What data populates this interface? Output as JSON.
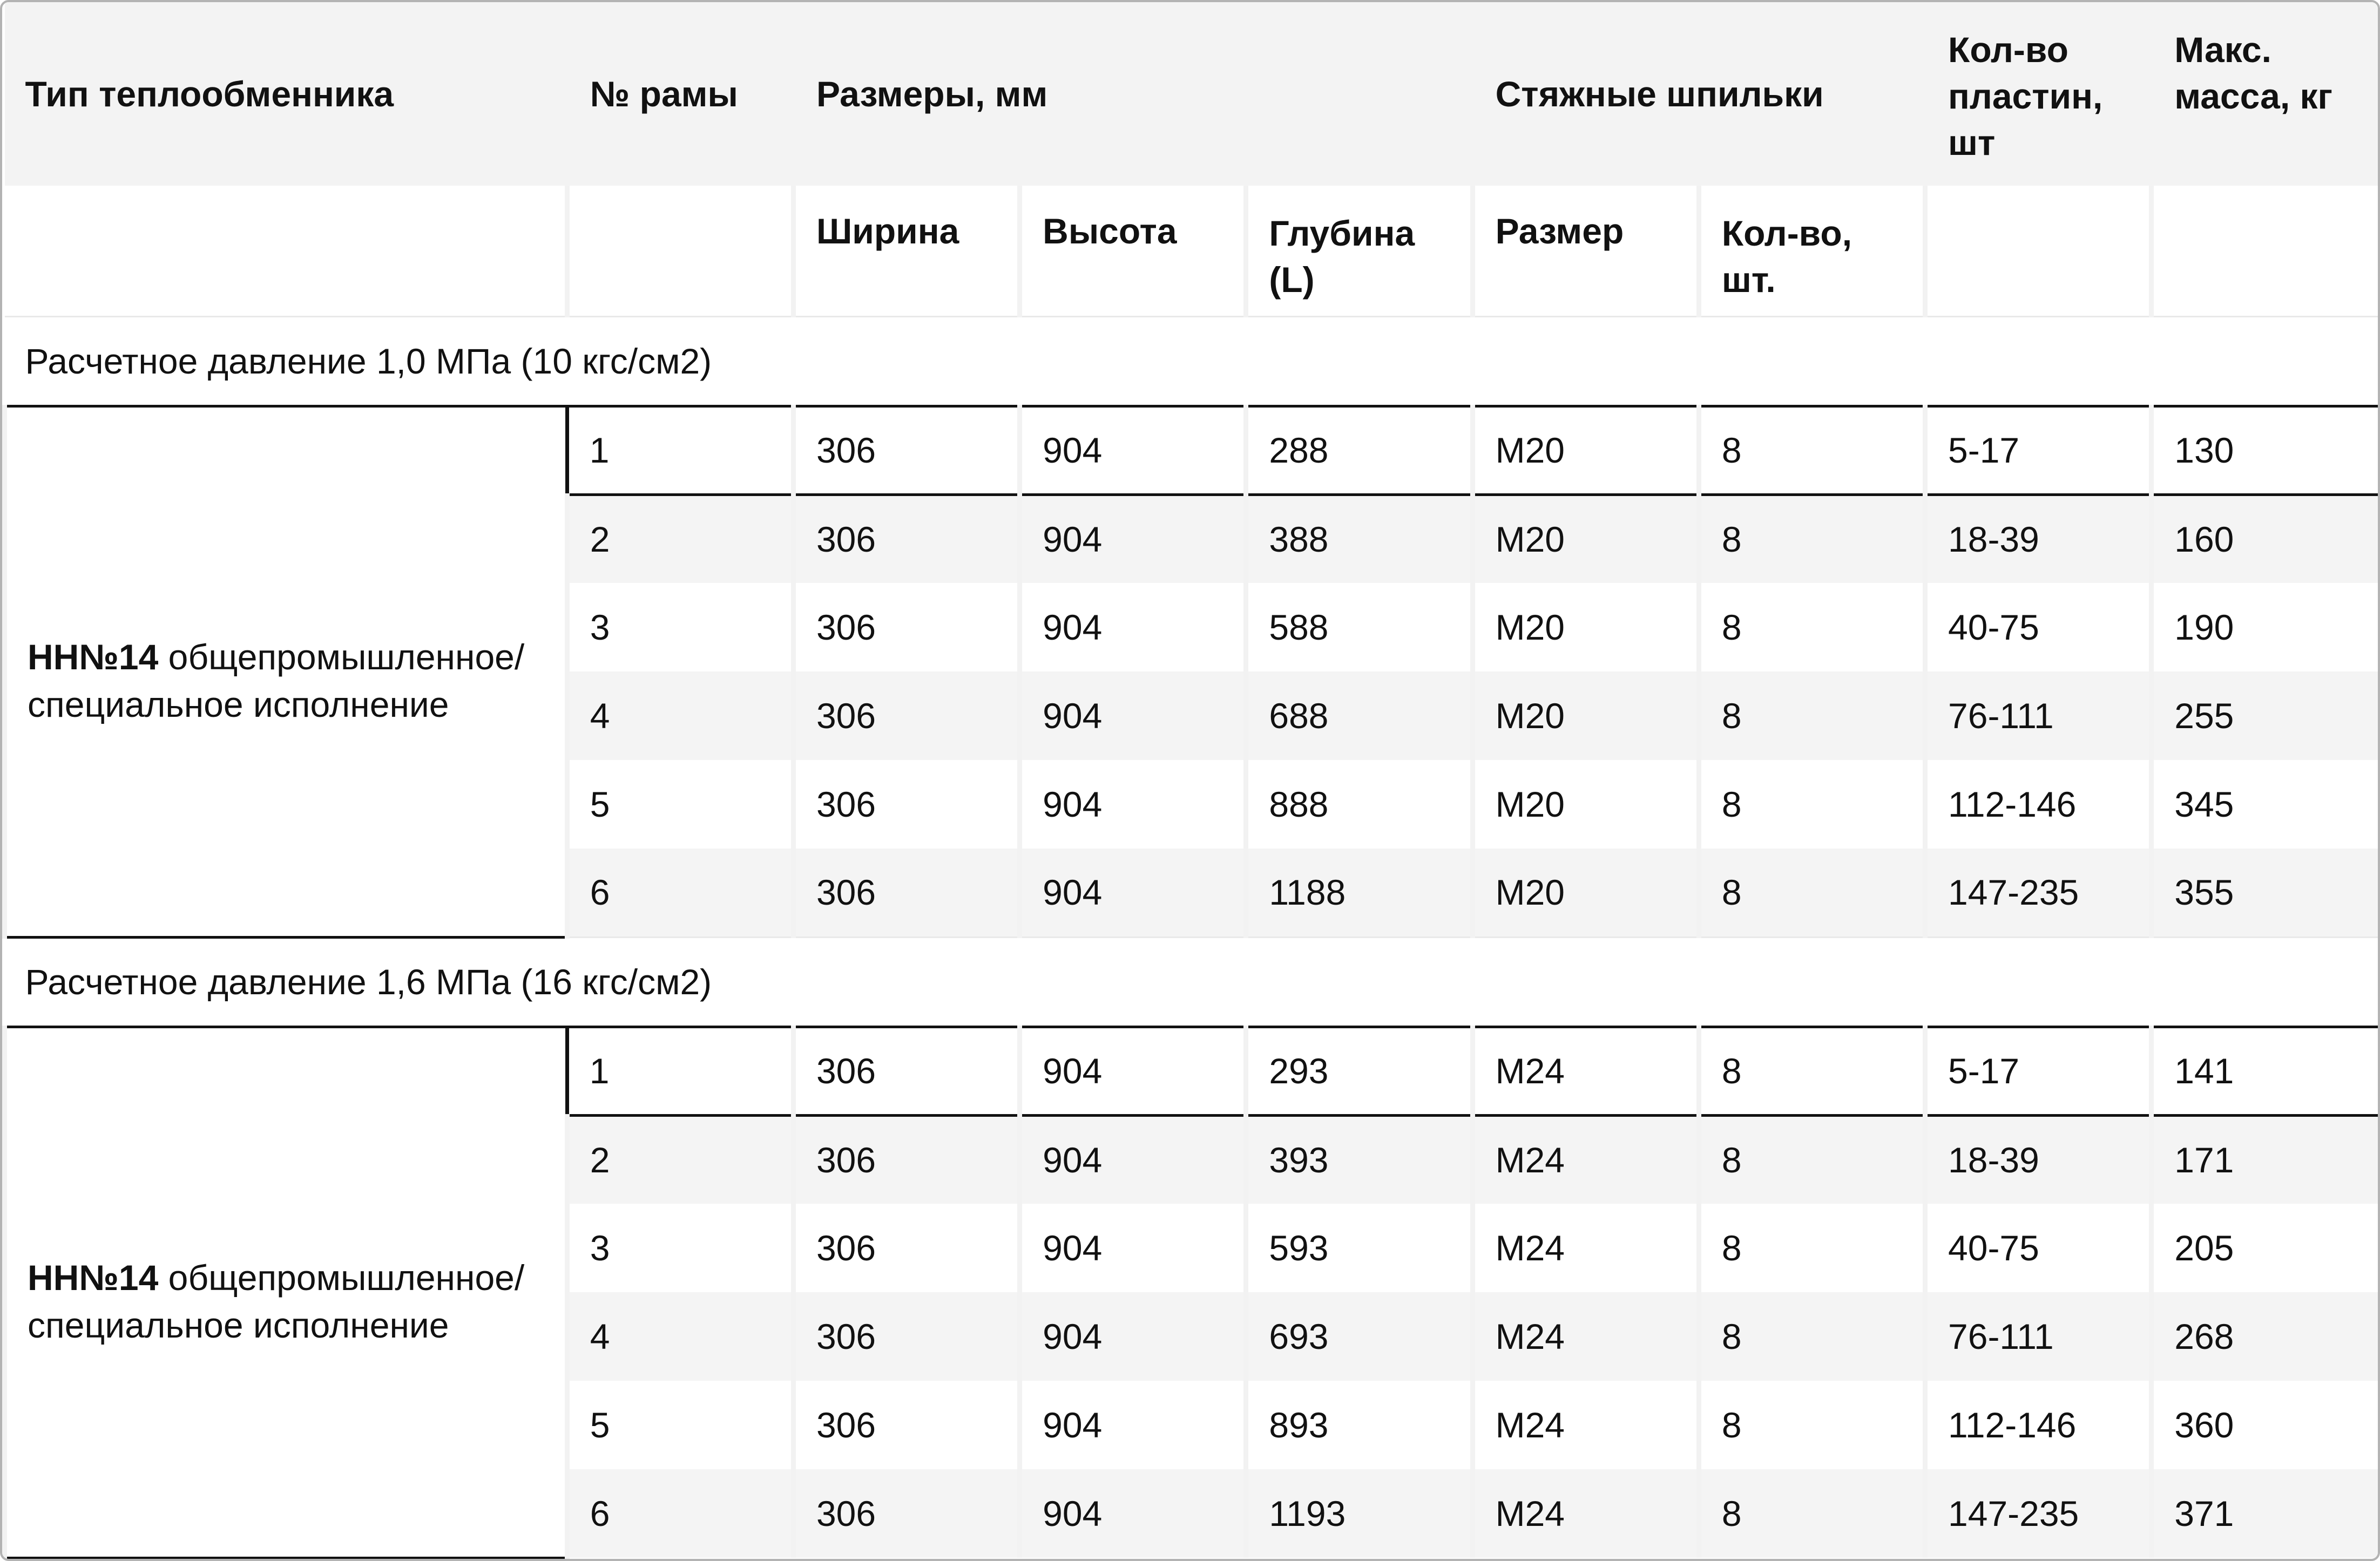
{
  "colors": {
    "page_border": "#b3b3b3",
    "header_bg": "#f3f3f3",
    "zebra_row_bg": "#f4f4f4",
    "column_separator": "#f2f2f2",
    "section_divider": "#e9e9e9",
    "highlight_row_border": "#111111",
    "text": "#111111"
  },
  "table": {
    "header": {
      "type": "Тип теплообменника",
      "frame": "№ рамы",
      "dimensions": "Размеры, мм",
      "studs": "Стяжные шпильки",
      "plates": "Кол-во\nпластин,\nшт",
      "mass": "Макс.\nмасса, кг",
      "width": "Ширина",
      "height": "Высота",
      "depth": "Глубина\n(L)",
      "stud_size": "Размер",
      "stud_qty": "Кол-во,\nшт."
    },
    "groups": [
      {
        "section": "Расчетное давление 1,0 МПа (10 кгс/см2)",
        "type_bold": "НН№14",
        "type_rest": "общепромышленное/\nспециальное исполнение",
        "rows": [
          {
            "cells": [
              "1",
              "306",
              "904",
              "288",
              "М20",
              "8",
              "5-17",
              "130"
            ]
          },
          {
            "cells": [
              "2",
              "306",
              "904",
              "388",
              "М20",
              "8",
              "18-39",
              "160"
            ]
          },
          {
            "cells": [
              "3",
              "306",
              "904",
              "588",
              "М20",
              "8",
              "40-75",
              "190"
            ]
          },
          {
            "cells": [
              "4",
              "306",
              "904",
              "688",
              "М20",
              "8",
              "76-111",
              "255"
            ]
          },
          {
            "cells": [
              "5",
              "306",
              "904",
              "888",
              "М20",
              "8",
              "112-146",
              "345"
            ]
          },
          {
            "cells": [
              "6",
              "306",
              "904",
              "1188",
              "М20",
              "8",
              "147-235",
              "355"
            ]
          }
        ]
      },
      {
        "section": "Расчетное давление 1,6 МПа (16 кгс/см2)",
        "type_bold": "НН№14",
        "type_rest": "общепромышленное/\nспециальное исполнение",
        "rows": [
          {
            "cells": [
              "1",
              "306",
              "904",
              "293",
              "М24",
              "8",
              "5-17",
              "141"
            ]
          },
          {
            "cells": [
              "2",
              "306",
              "904",
              "393",
              "М24",
              "8",
              "18-39",
              "171"
            ]
          },
          {
            "cells": [
              "3",
              "306",
              "904",
              "593",
              "М24",
              "8",
              "40-75",
              "205"
            ]
          },
          {
            "cells": [
              "4",
              "306",
              "904",
              "693",
              "М24",
              "8",
              "76-111",
              "268"
            ]
          },
          {
            "cells": [
              "5",
              "306",
              "904",
              "893",
              "М24",
              "8",
              "112-146",
              "360"
            ]
          },
          {
            "cells": [
              "6",
              "306",
              "904",
              "1193",
              "М24",
              "8",
              "147-235",
              "371"
            ]
          }
        ]
      }
    ]
  }
}
